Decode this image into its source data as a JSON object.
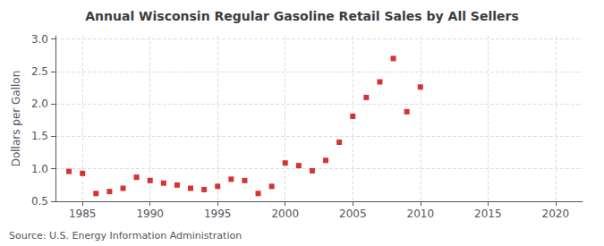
{
  "chart_data": {
    "type": "scatter",
    "title": "Annual Wisconsin Regular Gasoline Retail Sales by All Sellers",
    "ylabel": "Dollars per Gallon",
    "annotation": "Source: U.S. Energy Information Administration",
    "color": "#cc0000",
    "marker": "square",
    "grid": true,
    "xlim": [
      1983,
      2022
    ],
    "ylim": [
      0.5,
      3.05
    ],
    "xticks": [
      1985,
      1990,
      1995,
      2000,
      2005,
      2010,
      2015,
      2020
    ],
    "yticks": [
      0.5,
      {
        "value": 1.0,
        "label": "1.0"
      },
      1.5,
      {
        "value": 2.0,
        "label": "2.0"
      },
      2.5,
      {
        "value": 3.0,
        "label": "3.0"
      }
    ],
    "x": [
      1984,
      1985,
      1986,
      1987,
      1988,
      1989,
      1990,
      1991,
      1992,
      1993,
      1994,
      1995,
      1996,
      1997,
      1998,
      1999,
      2000,
      2001,
      2002,
      2003,
      2004,
      2005,
      2006,
      2007,
      2008,
      2009,
      2010
    ],
    "values": [
      0.96,
      0.93,
      0.62,
      0.65,
      0.7,
      0.87,
      0.82,
      0.78,
      0.75,
      0.7,
      0.68,
      0.73,
      0.84,
      0.82,
      0.62,
      0.73,
      1.09,
      1.05,
      0.97,
      1.13,
      1.41,
      1.81,
      2.1,
      2.34,
      2.7,
      1.88,
      2.26
    ]
  }
}
